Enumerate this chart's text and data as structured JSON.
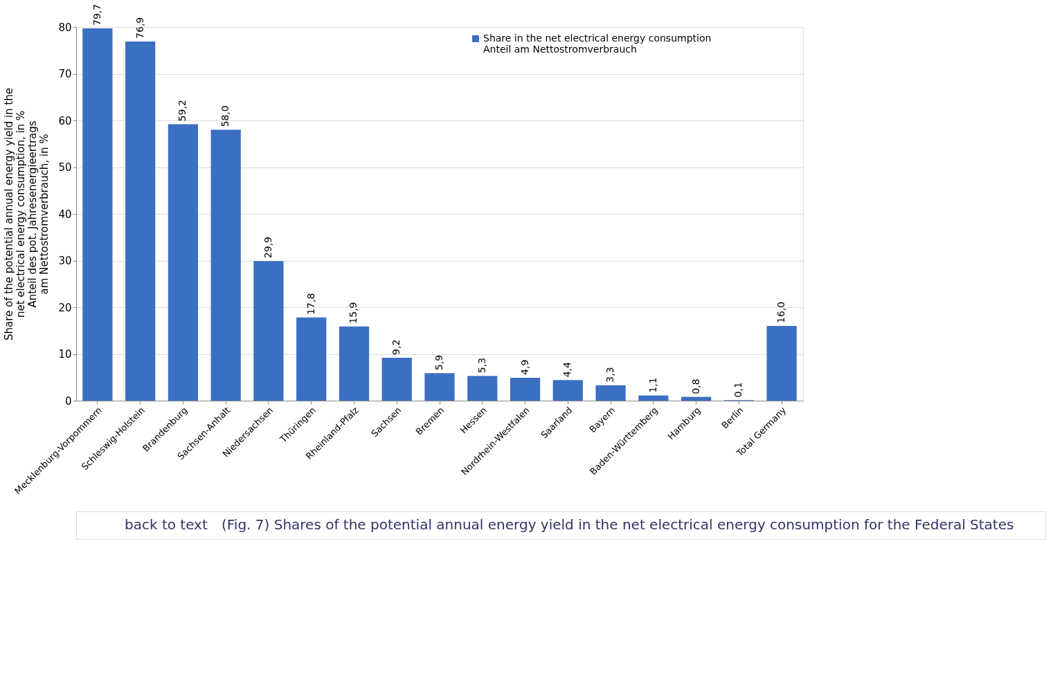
{
  "chart_data": {
    "type": "bar",
    "ylabel": "Share of the potential annual energy yield in the\nnet electrical energy consumption, in %\nAnteil des pot. Jahresenergieertrags\nam Nettostromverbrauch, in %",
    "categories": [
      "Mecklenburg-Vorpommern",
      "Schleswig-Holstein",
      "Brandenburg",
      "Sachsen-Anhalt",
      "Niedersachsen",
      "Thüringen",
      "Rheinland-Pfalz",
      "Sachsen",
      "Bremen",
      "Hessen",
      "Nordrhein-Westfalen",
      "Saarland",
      "Bayern",
      "Baden-Württemberg",
      "Hamburg",
      "Berlin",
      "Total Germany"
    ],
    "series": [
      {
        "name": "Share in the net electrical energy consumption\nAnteil am Nettostromverbrauch",
        "color": "#3b6fc2",
        "values": [
          79.7,
          76.9,
          59.2,
          58.0,
          29.9,
          17.8,
          15.9,
          9.2,
          5.9,
          5.3,
          4.9,
          4.4,
          3.3,
          1.1,
          0.8,
          0.1,
          16.0
        ],
        "value_labels": [
          "79,7",
          "76,9",
          "59,2",
          "58,0",
          "29,9",
          "17,8",
          "15,9",
          "9,2",
          "5,9",
          "5,3",
          "4,9",
          "4,4",
          "3,3",
          "1,1",
          "0,8",
          "0,1",
          "16,0"
        ]
      }
    ],
    "ylim": [
      0,
      80
    ],
    "yticks": [
      0,
      10,
      20,
      30,
      40,
      50,
      60,
      70,
      80
    ],
    "grid": "y",
    "legend": "top right",
    "annotations": [
      "back to text",
      "(Fig. 7) Shares of the potential annual energy yield in the net electrical energy consumption for the Federal States"
    ]
  }
}
